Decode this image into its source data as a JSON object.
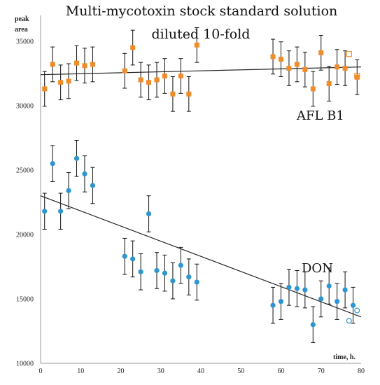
{
  "chart_data": {
    "type": "scatter",
    "title": "Multi-mycotoxin stock standard solution",
    "subtitle": "diluted 10-fold",
    "xlabel": "time, h.",
    "ylabel_line1": "peak",
    "ylabel_line2": "area",
    "xlim": [
      0,
      80
    ],
    "ylim": [
      10000,
      37000
    ],
    "x_ticks": [
      0,
      10,
      20,
      30,
      40,
      50,
      60,
      70,
      80
    ],
    "y_ticks": [
      10000,
      15000,
      20000,
      25000,
      30000,
      35000
    ],
    "grid": false,
    "series": [
      {
        "name": "AFL B1",
        "color": "#F28C28",
        "marker": "square",
        "error": 1350,
        "trend": [
          [
            0,
            32400
          ],
          [
            80,
            33000
          ]
        ],
        "points": [
          [
            1,
            31300
          ],
          [
            3,
            33200
          ],
          [
            5,
            31800
          ],
          [
            7,
            31900
          ],
          [
            9,
            33300
          ],
          [
            11,
            33100
          ],
          [
            13,
            33200
          ],
          [
            21,
            32700
          ],
          [
            23,
            34500
          ],
          [
            25,
            32000
          ],
          [
            27,
            31800
          ],
          [
            29,
            32000
          ],
          [
            31,
            32300
          ],
          [
            33,
            30900
          ],
          [
            35,
            32300
          ],
          [
            37,
            30900
          ],
          [
            39,
            34700
          ],
          [
            58,
            33800
          ],
          [
            60,
            33600
          ],
          [
            62,
            32900
          ],
          [
            64,
            33200
          ],
          [
            66,
            32800
          ],
          [
            68,
            31300
          ],
          [
            70,
            34100
          ],
          [
            72,
            31700
          ],
          [
            74,
            33000
          ],
          [
            76,
            32900
          ],
          [
            79,
            32200
          ]
        ],
        "open_points": [
          [
            77,
            34000
          ],
          [
            79,
            32300
          ]
        ]
      },
      {
        "name": "DON",
        "color": "#2E95D3",
        "marker": "circle",
        "error": 1400,
        "trend": [
          [
            0,
            23000
          ],
          [
            80,
            13600
          ]
        ],
        "points": [
          [
            1,
            21800
          ],
          [
            3,
            25500
          ],
          [
            5,
            21800
          ],
          [
            7,
            23400
          ],
          [
            9,
            25900
          ],
          [
            11,
            24700
          ],
          [
            13,
            23800
          ],
          [
            21,
            18300
          ],
          [
            23,
            18100
          ],
          [
            25,
            17100
          ],
          [
            27,
            21600
          ],
          [
            29,
            17200
          ],
          [
            31,
            17000
          ],
          [
            33,
            16400
          ],
          [
            35,
            17600
          ],
          [
            37,
            16700
          ],
          [
            39,
            16300
          ],
          [
            58,
            14500
          ],
          [
            60,
            14800
          ],
          [
            62,
            15900
          ],
          [
            64,
            15800
          ],
          [
            66,
            15700
          ],
          [
            68,
            13000
          ],
          [
            70,
            15000
          ],
          [
            72,
            16000
          ],
          [
            74,
            14800
          ],
          [
            76,
            15700
          ],
          [
            78,
            14500
          ]
        ],
        "open_points": [
          [
            77,
            13300
          ],
          [
            79,
            14100
          ]
        ]
      }
    ]
  }
}
